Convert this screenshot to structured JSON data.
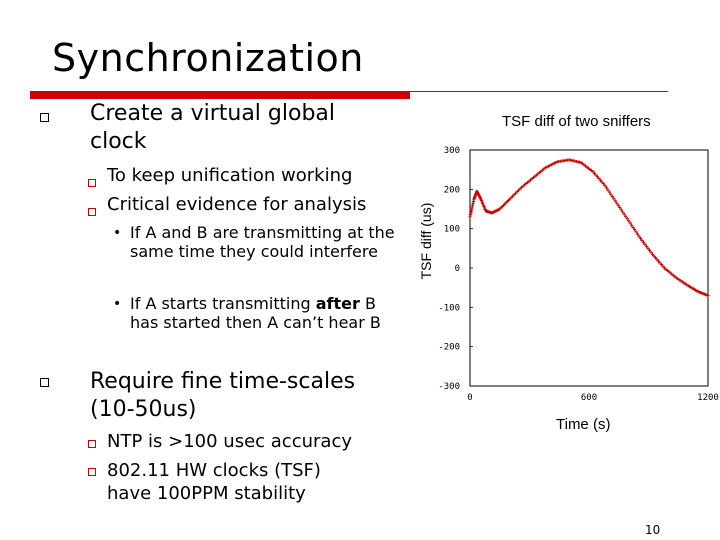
{
  "slide": {
    "title": "Synchronization",
    "page_number": "10",
    "bullets": {
      "b1": "Create a virtual global clock",
      "b1_sub1": "To keep unification working",
      "b1_sub2": "Critical evidence for analysis",
      "b1_sub2_item1": "If A and B are transmitting at the same time they could interfere",
      "b1_sub2_item2_pre": "If A starts transmitting ",
      "b1_sub2_item2_bold": "after",
      "b1_sub2_item2_post": " B has started then A can’t hear B",
      "b2": "Require fine time-scales (10-50us)",
      "b2_sub1": "NTP is >100 usec accuracy",
      "b2_sub2": "802.11 HW clocks (TSF) have 100PPM stability"
    },
    "colors": {
      "accent": "#cc0000"
    }
  },
  "chart_data": {
    "type": "scatter",
    "title": "TSF diff of two sniffers",
    "xlabel": "Time (s)",
    "ylabel": "TSF diff (us)",
    "xlim": [
      0,
      1200
    ],
    "ylim": [
      -300,
      300
    ],
    "xticks": [
      "0",
      "600",
      "1200"
    ],
    "yticks": [
      "300",
      "200",
      "100",
      "0",
      "-100",
      "-200",
      "-300"
    ],
    "marker_color": "#cc0000",
    "points": [
      [
        0,
        130
      ],
      [
        20,
        175
      ],
      [
        35,
        195
      ],
      [
        55,
        175
      ],
      [
        80,
        145
      ],
      [
        110,
        140
      ],
      [
        150,
        150
      ],
      [
        200,
        175
      ],
      [
        260,
        205
      ],
      [
        320,
        230
      ],
      [
        380,
        255
      ],
      [
        440,
        270
      ],
      [
        500,
        275
      ],
      [
        560,
        268
      ],
      [
        620,
        245
      ],
      [
        680,
        210
      ],
      [
        740,
        165
      ],
      [
        800,
        120
      ],
      [
        860,
        75
      ],
      [
        920,
        35
      ],
      [
        980,
        0
      ],
      [
        1040,
        -25
      ],
      [
        1100,
        -45
      ],
      [
        1150,
        -60
      ],
      [
        1200,
        -70
      ]
    ]
  }
}
